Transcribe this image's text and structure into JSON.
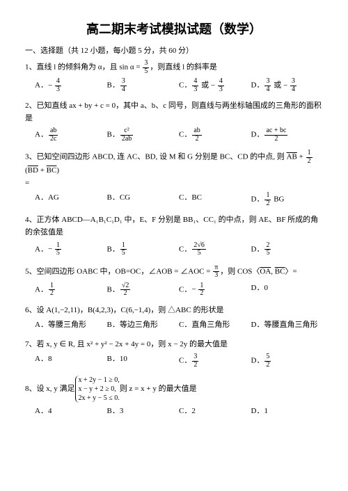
{
  "title": "高二期末考试模拟试题（数学）",
  "section_head": "一、选择题（共 12 小题，每小题 5 分，共 60 分）",
  "questions": [
    {
      "num": "1、",
      "stem_pre": "直线 l 的倾斜角为 α，且 sin α = ",
      "frac": {
        "n": "3",
        "d": "5"
      },
      "stem_post": "，则直线 l 的斜率是",
      "opts": [
        {
          "label": "A．",
          "neg": true,
          "frac": {
            "n": "4",
            "d": "3"
          }
        },
        {
          "label": "B．",
          "frac": {
            "n": "3",
            "d": "4"
          }
        },
        {
          "label": "C．",
          "frac": {
            "n": "4",
            "d": "3"
          },
          "after": " 或 ",
          "neg2": true,
          "frac2": {
            "n": "4",
            "d": "3"
          }
        },
        {
          "label": "D．",
          "frac": {
            "n": "3",
            "d": "4"
          },
          "after": " 或 ",
          "neg2": true,
          "frac2": {
            "n": "3",
            "d": "4"
          }
        }
      ]
    },
    {
      "num": "2、",
      "stem_plain": "已知直线 ax + by + c = 0，其中 a、b、c 同号，则直线与两坐标轴围成的三角形的面积是",
      "opts": [
        {
          "label": "A．",
          "frac": {
            "n": "ab",
            "d": "2c"
          }
        },
        {
          "label": "B．",
          "frac": {
            "n": "c²",
            "d": "2ab"
          }
        },
        {
          "label": "C．",
          "frac": {
            "n": "ab",
            "d": "2"
          }
        },
        {
          "label": "D．",
          "frac": {
            "n": "ac + bc",
            "d": "2"
          }
        }
      ]
    },
    {
      "num": "3、",
      "stem_rich": true,
      "opts": [
        {
          "label": "A．",
          "text": "AG"
        },
        {
          "label": "B．",
          "text": "CG"
        },
        {
          "label": "C．",
          "text": "BC"
        },
        {
          "label": "D．",
          "frac": {
            "n": "1",
            "d": "2"
          },
          "after": " BG"
        }
      ]
    },
    {
      "num": "4、",
      "stem_plain": "正方体 ABCD—A₁B₁C₁D₁ 中，E、F 分别是 BB₁、CC₁ 的中点，则 AE、BF 所成的角的余弦值是",
      "opts": [
        {
          "label": "A．",
          "neg": true,
          "frac": {
            "n": "1",
            "d": "5"
          }
        },
        {
          "label": "B．",
          "frac": {
            "n": "1",
            "d": "5"
          }
        },
        {
          "label": "C．",
          "frac": {
            "n": "2√6",
            "d": "5"
          }
        },
        {
          "label": "D．",
          "frac": {
            "n": "2",
            "d": "5"
          }
        }
      ]
    },
    {
      "num": "5、",
      "stem_rich5": true,
      "opts": [
        {
          "label": "A．",
          "frac": {
            "n": "1",
            "d": "2"
          }
        },
        {
          "label": "B．",
          "frac": {
            "n": "√2",
            "d": "2"
          }
        },
        {
          "label": "C．",
          "neg": true,
          "frac": {
            "n": "1",
            "d": "2"
          }
        },
        {
          "label": "D．",
          "text": "0"
        }
      ]
    },
    {
      "num": "6、",
      "stem_plain": "设 A(1,−2,11)，B(4,2,3)，C(6,−1,4)，则 △ABC 的形状是",
      "opts": [
        {
          "label": "A．",
          "text": "等腰三角形"
        },
        {
          "label": "B．",
          "text": "等边三角形"
        },
        {
          "label": "C．",
          "text": "直角三角形"
        },
        {
          "label": "D．",
          "text": "等腰直角三角形"
        }
      ]
    },
    {
      "num": "7、",
      "stem_plain": "若 x, y ∈ R, 且 x² + y² − 2x + 4y = 0，则 x − 2y 的最大值是",
      "opts": [
        {
          "label": "A．",
          "text": "8"
        },
        {
          "label": "B．",
          "text": "10"
        },
        {
          "label": "C．",
          "frac": {
            "n": "3",
            "d": "2"
          }
        },
        {
          "label": "D．",
          "frac": {
            "n": "5",
            "d": "2"
          }
        }
      ]
    },
    {
      "num": "8、",
      "stem_rich8": true,
      "lines": [
        "x + 2y − 1 ≥ 0,",
        "x − y + 2 ≥ 0,",
        "2x + y − 5 ≤ 0."
      ],
      "post8": " 则 z = x + y 的最大值是",
      "opts": [
        {
          "label": "A．",
          "text": "4"
        },
        {
          "label": "B．",
          "text": "3"
        },
        {
          "label": "C．",
          "text": "2"
        },
        {
          "label": "D．",
          "text": "1"
        }
      ]
    }
  ]
}
